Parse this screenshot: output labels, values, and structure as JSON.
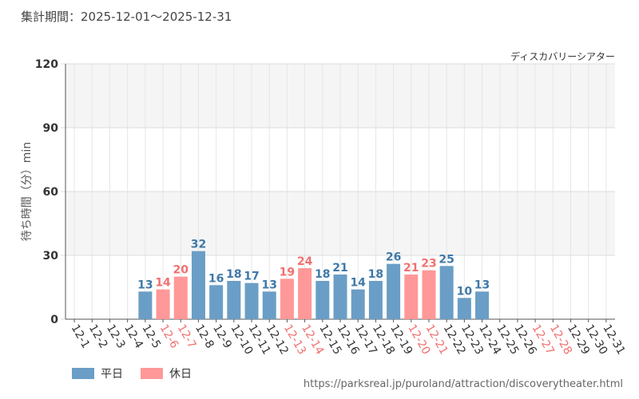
{
  "header": {
    "period": "集計期間：2025-12-01～2025-12-31"
  },
  "chart_data": {
    "type": "bar",
    "title": "ディスカバリーシアター",
    "ylabel": "待ち時間（分）min",
    "xlabel": "",
    "ylim": [
      0,
      120
    ],
    "yticks": [
      0,
      30,
      60,
      90,
      120
    ],
    "categories": [
      "12-1",
      "12-2",
      "12-3",
      "12-4",
      "12-5",
      "12-6",
      "12-7",
      "12-8",
      "12-9",
      "12-10",
      "12-11",
      "12-12",
      "12-13",
      "12-14",
      "12-15",
      "12-16",
      "12-17",
      "12-18",
      "12-19",
      "12-20",
      "12-21",
      "12-22",
      "12-23",
      "12-24",
      "12-25",
      "12-26",
      "12-27",
      "12-28",
      "12-29",
      "12-30",
      "12-31"
    ],
    "values": [
      null,
      null,
      null,
      null,
      13,
      14,
      20,
      32,
      16,
      18,
      17,
      13,
      19,
      24,
      18,
      21,
      14,
      18,
      26,
      21,
      23,
      25,
      10,
      13,
      null,
      null,
      null,
      null,
      null,
      null,
      null
    ],
    "day_type": [
      "weekday",
      "weekday",
      "weekday",
      "weekday",
      "weekday",
      "holiday",
      "holiday",
      "weekday",
      "weekday",
      "weekday",
      "weekday",
      "weekday",
      "holiday",
      "holiday",
      "weekday",
      "weekday",
      "weekday",
      "weekday",
      "weekday",
      "holiday",
      "holiday",
      "weekday",
      "weekday",
      "weekday",
      "weekday",
      "weekday",
      "holiday",
      "holiday",
      "weekday",
      "weekday",
      "weekday"
    ],
    "legend": [
      {
        "key": "weekday",
        "label": "平日"
      },
      {
        "key": "holiday",
        "label": "休日"
      }
    ],
    "colors": {
      "weekday_bar": "#6a9ec6",
      "holiday_bar": "#ff9898",
      "weekday_text": "#3f78a8",
      "holiday_text": "#f07070"
    }
  },
  "footer": {
    "source": "https://parksreal.jp/puroland/attraction/discoverytheater.html"
  }
}
